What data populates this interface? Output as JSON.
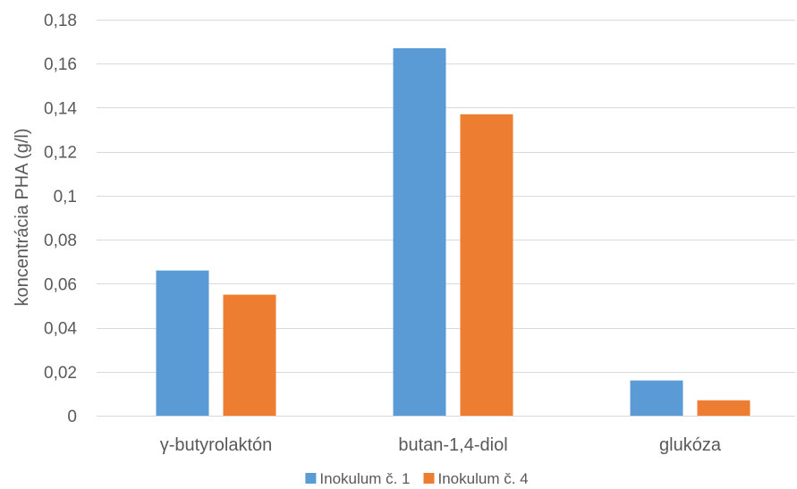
{
  "chart_data": {
    "type": "bar",
    "ylabel": "koncentrácia PHA (g/l)",
    "categories": [
      "γ-butyrolaktón",
      "butan-1,4-diol",
      "glukóza"
    ],
    "series": [
      {
        "name": "Inokulum č. 1",
        "color": "#5B9BD5",
        "values": [
          0.066,
          0.167,
          0.016
        ]
      },
      {
        "name": "Inokulum č. 4",
        "color": "#ED7D31",
        "values": [
          0.055,
          0.137,
          0.007
        ]
      }
    ],
    "ylim": [
      0,
      0.18
    ],
    "yticks": [
      0,
      0.02,
      0.04,
      0.06,
      0.08,
      0.1,
      0.12,
      0.14,
      0.16,
      0.18
    ],
    "ytick_labels": [
      "0",
      "0,02",
      "0,04",
      "0,06",
      "0,08",
      "0,1",
      "0,12",
      "0,14",
      "0,16",
      "0,18"
    ],
    "grid": true,
    "legend_position": "bottom"
  }
}
